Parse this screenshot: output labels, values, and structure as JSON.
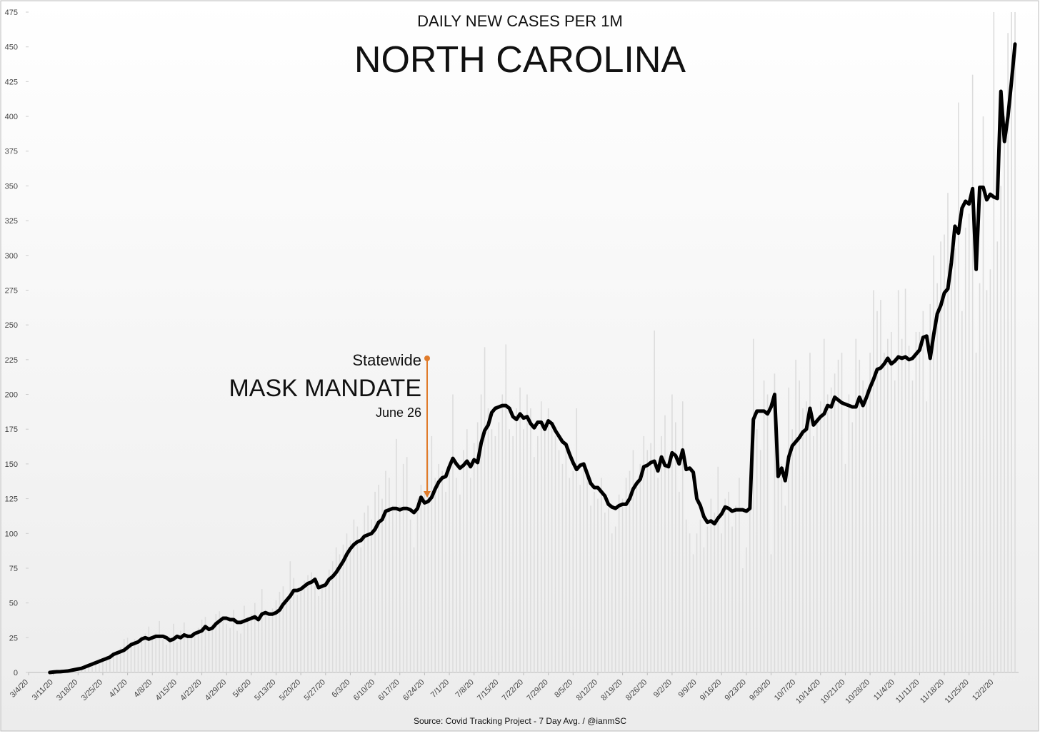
{
  "chart_data": {
    "type": "line",
    "title": "NORTH CAROLINA",
    "subtitle": "DAILY NEW CASES PER 1M",
    "source": "Source: Covid Tracking Project - 7 Day Avg. / @ianmSC",
    "annotation": {
      "top": "Statewide",
      "main": "MASK MANDATE",
      "date": "June 26"
    },
    "ylim": [
      0,
      475
    ],
    "yticks": [
      0,
      25,
      50,
      75,
      100,
      125,
      150,
      175,
      200,
      225,
      250,
      275,
      300,
      325,
      350,
      375,
      400,
      425,
      450,
      475
    ],
    "grid": false,
    "categories": [
      "3/4/20",
      null,
      null,
      null,
      null,
      null,
      null,
      "3/11/20",
      null,
      null,
      null,
      null,
      null,
      null,
      "3/18/20",
      null,
      null,
      null,
      null,
      null,
      null,
      "3/25/20",
      null,
      null,
      null,
      null,
      null,
      null,
      "4/1/20",
      null,
      null,
      null,
      null,
      null,
      null,
      "4/8/20",
      null,
      null,
      null,
      null,
      null,
      null,
      "4/15/20",
      null,
      null,
      null,
      null,
      null,
      null,
      "4/22/20",
      null,
      null,
      null,
      null,
      null,
      null,
      "4/29/20",
      null,
      null,
      null,
      null,
      null,
      null,
      "5/6/20",
      null,
      null,
      null,
      null,
      null,
      null,
      "5/13/20",
      null,
      null,
      null,
      null,
      null,
      null,
      "5/20/20",
      null,
      null,
      null,
      null,
      null,
      null,
      "5/27/20",
      null,
      null,
      null,
      null,
      null,
      null,
      "6/3/20",
      null,
      null,
      null,
      null,
      null,
      null,
      "6/10/20",
      null,
      null,
      null,
      null,
      null,
      null,
      "6/17/20",
      null,
      null,
      null,
      null,
      null,
      null,
      "6/24/20",
      null,
      null,
      null,
      null,
      null,
      null,
      "7/1/20",
      null,
      null,
      null,
      null,
      null,
      null,
      "7/8/20",
      null,
      null,
      null,
      null,
      null,
      null,
      "7/15/20",
      null,
      null,
      null,
      null,
      null,
      null,
      "7/22/20",
      null,
      null,
      null,
      null,
      null,
      null,
      "7/29/20",
      null,
      null,
      null,
      null,
      null,
      null,
      "8/5/20",
      null,
      null,
      null,
      null,
      null,
      null,
      "8/12/20",
      null,
      null,
      null,
      null,
      null,
      null,
      "8/19/20",
      null,
      null,
      null,
      null,
      null,
      null,
      "8/26/20",
      null,
      null,
      null,
      null,
      null,
      null,
      "9/2/20",
      null,
      null,
      null,
      null,
      null,
      null,
      "9/9/20",
      null,
      null,
      null,
      null,
      null,
      null,
      "9/16/20",
      null,
      null,
      null,
      null,
      null,
      null,
      "9/23/20",
      null,
      null,
      null,
      null,
      null,
      null,
      "9/30/20",
      null,
      null,
      null,
      null,
      null,
      null,
      "10/7/20",
      null,
      null,
      null,
      null,
      null,
      null,
      "10/14/20",
      null,
      null,
      null,
      null,
      null,
      null,
      "10/21/20",
      null,
      null,
      null,
      null,
      null,
      null,
      "10/28/20",
      null,
      null,
      null,
      null,
      null,
      null,
      "11/4/20",
      null,
      null,
      null,
      null,
      null,
      null,
      "11/11/20",
      null,
      null,
      null,
      null,
      null,
      null,
      "11/18/20",
      null,
      null,
      null,
      null,
      null,
      null,
      "11/25/20",
      null,
      null,
      null,
      null,
      null,
      null,
      "12/2/20",
      null,
      null,
      null,
      null,
      null,
      null
    ],
    "series": [
      {
        "type": "bar",
        "color": "#dcdcdc",
        "values": [
          0,
          0,
          0,
          0,
          0,
          0,
          0,
          0,
          1,
          1,
          1,
          1,
          2,
          3,
          3,
          4,
          4,
          6,
          7,
          8,
          10,
          10,
          12,
          13,
          14,
          15,
          18,
          24,
          25,
          22,
          24,
          20,
          26,
          28,
          33,
          25,
          28,
          37,
          24,
          20,
          26,
          35,
          22,
          30,
          36,
          28,
          26,
          29,
          32,
          38,
          40,
          30,
          35,
          42,
          44,
          40,
          35,
          32,
          45,
          30,
          28,
          48,
          40,
          42,
          50,
          38,
          60,
          45,
          40,
          46,
          52,
          58,
          62,
          50,
          80,
          68,
          56,
          60,
          66,
          70,
          72,
          62,
          55,
          64,
          66,
          74,
          80,
          90,
          85,
          92,
          100,
          95,
          110,
          105,
          90,
          115,
          120,
          110,
          130,
          135,
          125,
          145,
          140,
          120,
          168,
          120,
          150,
          155,
          110,
          90,
          125,
          135,
          130,
          160,
          170,
          140,
          150,
          145,
          130,
          150,
          200,
          140,
          128,
          160,
          175,
          140,
          165,
          180,
          200,
          234,
          190,
          175,
          170,
          180,
          200,
          236,
          175,
          170,
          190,
          205,
          175,
          200,
          190,
          155,
          170,
          195,
          180,
          190,
          175,
          170,
          160,
          150,
          165,
          140,
          145,
          190,
          135,
          150,
          140,
          120,
          130,
          125,
          140,
          115,
          118,
          100,
          105,
          128,
          125,
          140,
          145,
          160,
          135,
          150,
          170,
          160,
          165,
          246,
          140,
          170,
          185,
          150,
          200,
          180,
          130,
          195,
          110,
          100,
          85,
          100,
          110,
          90,
          105,
          125,
          115,
          148,
          100,
          125,
          130,
          105,
          120,
          140,
          75,
          90,
          125,
          240,
          175,
          160,
          210,
          200,
          85,
          215,
          140,
          150,
          120,
          205,
          175,
          225,
          210,
          190,
          195,
          230,
          170,
          180,
          195,
          240,
          200,
          205,
          215,
          225,
          230,
          150,
          200,
          180,
          240,
          225,
          210,
          205,
          230,
          275,
          260,
          268,
          230,
          240,
          245,
          210,
          275,
          240,
          276,
          235,
          210,
          245,
          245,
          260,
          195,
          265,
          300,
          280,
          310,
          315,
          345,
          300,
          305,
          410,
          260,
          320,
          330,
          430,
          230,
          280,
          400,
          275,
          290,
          475,
          310,
          350,
          400,
          460,
          475,
          475
        ]
      },
      {
        "type": "line",
        "color": "#000000",
        "values": [
          null,
          null,
          null,
          null,
          null,
          null,
          0,
          0.3,
          0.5,
          0.6,
          0.8,
          1,
          1.5,
          2,
          2.5,
          3,
          4,
          5,
          6,
          7,
          8,
          9,
          10,
          11,
          13,
          14,
          15,
          16,
          18,
          20,
          21,
          22,
          24,
          25,
          24,
          25,
          26,
          26,
          26,
          25,
          23,
          24,
          26,
          25,
          27,
          26,
          26,
          28,
          29,
          30,
          33,
          31,
          32,
          35,
          37,
          39,
          39,
          38,
          38,
          36,
          36,
          37,
          38,
          39,
          40,
          38,
          42,
          43,
          42,
          42,
          43,
          45,
          49,
          52,
          55,
          59,
          59,
          60,
          62,
          64,
          65,
          67,
          61,
          62,
          63,
          67,
          69,
          72,
          76,
          80,
          85,
          89,
          92,
          94,
          95,
          98,
          99,
          100,
          103,
          108,
          110,
          116,
          117,
          118,
          118,
          117,
          118,
          118,
          117,
          115,
          118,
          126,
          122,
          123,
          126,
          132,
          137,
          140,
          141,
          148,
          154,
          150,
          147,
          149,
          152,
          148,
          153,
          151,
          165,
          174,
          178,
          187,
          190,
          191,
          192,
          192,
          190,
          184,
          182,
          186,
          183,
          184,
          179,
          176,
          180,
          180,
          175,
          181,
          179,
          174,
          170,
          166,
          164,
          157,
          151,
          146,
          149,
          150,
          143,
          136,
          133,
          133,
          130,
          127,
          121,
          119,
          118,
          120,
          121,
          121,
          125,
          132,
          136,
          139,
          148,
          149,
          151,
          152,
          145,
          155,
          149,
          148,
          158,
          156,
          150,
          160,
          146,
          147,
          144,
          125,
          120,
          112,
          108,
          109,
          107,
          111,
          114,
          119,
          118,
          116,
          117,
          117,
          117,
          116,
          118,
          182,
          188,
          188,
          188,
          186,
          191,
          200,
          141,
          147,
          138,
          155,
          163,
          166,
          169,
          173,
          175,
          190,
          178,
          181,
          184,
          186,
          192,
          191,
          198,
          196,
          194,
          193,
          192,
          191,
          191,
          198,
          192,
          198,
          205,
          211,
          218,
          219,
          222,
          226,
          222,
          224,
          227,
          226,
          227,
          225,
          226,
          229,
          232,
          241,
          242,
          226,
          243,
          258,
          264,
          273,
          276,
          295,
          321,
          316,
          334,
          339,
          337,
          348,
          290,
          349,
          349,
          340,
          344,
          342,
          341,
          418,
          382,
          400,
          425,
          452
        ]
      }
    ]
  }
}
